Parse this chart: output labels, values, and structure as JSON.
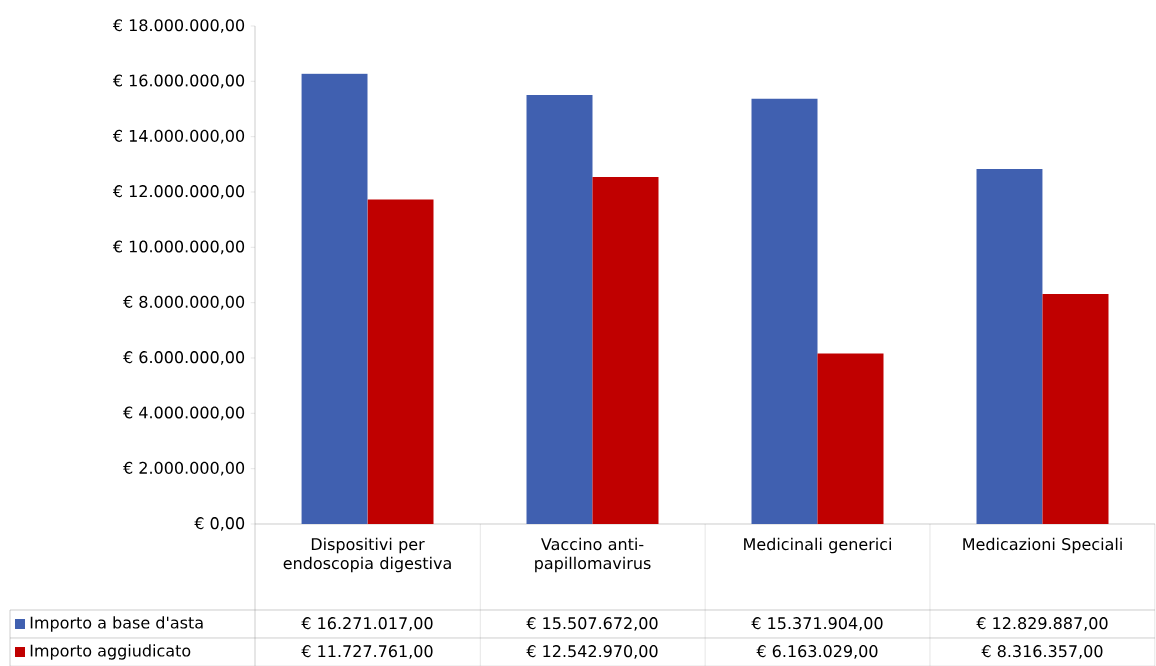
{
  "chart_data": {
    "type": "bar",
    "categories": [
      "Dispositivi per endoscopia digestiva",
      "Vaccino anti-papillomavirus",
      "Medicinali generici",
      "Medicazioni Speciali"
    ],
    "series": [
      {
        "name": "Importo a base d'asta",
        "color": "#4060b0",
        "values": [
          16271017,
          15507672,
          15371904,
          12829887
        ],
        "value_labels": [
          "€ 16.271.017,00",
          "€ 15.507.672,00",
          "€ 15.371.904,00",
          "€ 12.829.887,00"
        ]
      },
      {
        "name": "Importo aggiudicato",
        "color": "#c00000",
        "values": [
          11727761,
          12542970,
          6163029,
          8316357
        ],
        "value_labels": [
          "€ 11.727.761,00",
          "€ 12.542.970,00",
          "€ 6.163.029,00",
          "€ 8.316.357,00"
        ]
      }
    ],
    "ylim": [
      0,
      18000000
    ],
    "yticks": [
      {
        "value": 0,
        "label": "€ 0,00"
      },
      {
        "value": 2000000,
        "label": "€ 2.000.000,00"
      },
      {
        "value": 4000000,
        "label": "€ 4.000.000,00"
      },
      {
        "value": 6000000,
        "label": "€ 6.000.000,00"
      },
      {
        "value": 8000000,
        "label": "€ 8.000.000,00"
      },
      {
        "value": 10000000,
        "label": "€ 10.000.000,00"
      },
      {
        "value": 12000000,
        "label": "€ 12.000.000,00"
      },
      {
        "value": 14000000,
        "label": "€ 14.000.000,00"
      },
      {
        "value": 16000000,
        "label": "€ 16.000.000,00"
      },
      {
        "value": 18000000,
        "label": "€ 18.000.000,00"
      }
    ],
    "legend": "bottom"
  }
}
